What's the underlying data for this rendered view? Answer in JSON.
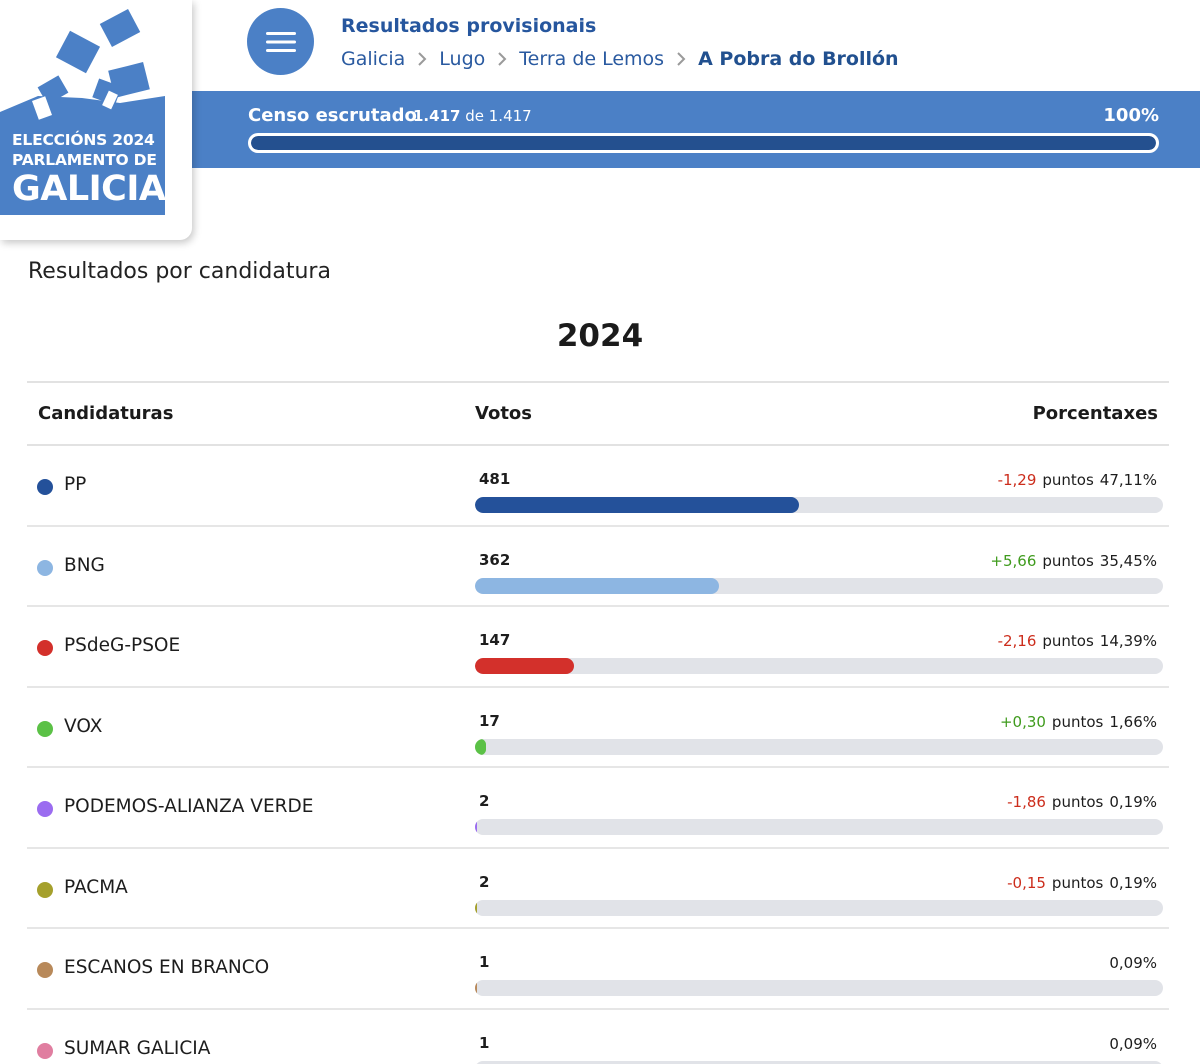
{
  "logo": {
    "line1": "ELECCIÓNS 2024",
    "line2": "PARLAMENTO DE",
    "line3": "GALICIA",
    "color": "#4b80c6"
  },
  "header": {
    "menu_icon": "hamburger-menu-icon",
    "title": "Resultados provisionais",
    "breadcrumb": [
      "Galicia",
      "Lugo",
      "Terra de Lemos",
      "A Pobra do Brollón"
    ],
    "separator_icon": "chevron-right-icon"
  },
  "census": {
    "label": "Censo escrutado",
    "counted": "1.417",
    "of_word": "de",
    "total": "1.417",
    "percent_text": "100%",
    "progress": 1.0
  },
  "results": {
    "section_title": "Resultados por candidatura",
    "year": "2024",
    "columns": {
      "candidates": "Candidaturas",
      "votes": "Votos",
      "percentages": "Porcentaxes"
    },
    "points_word": "puntos",
    "rows": [
      {
        "party": "PP",
        "color": "#24519a",
        "votes": "481",
        "diff": "-1,29",
        "diff_sign": "neg",
        "percent": "47,11%",
        "share": 0.4711
      },
      {
        "party": "BNG",
        "color": "#8db6e2",
        "votes": "362",
        "diff": "+5,66",
        "diff_sign": "pos",
        "percent": "35,45%",
        "share": 0.3545
      },
      {
        "party": "PSdeG-PSOE",
        "color": "#d3302b",
        "votes": "147",
        "diff": "-2,16",
        "diff_sign": "neg",
        "percent": "14,39%",
        "share": 0.1439
      },
      {
        "party": "VOX",
        "color": "#5bc146",
        "votes": "17",
        "diff": "+0,30",
        "diff_sign": "pos",
        "percent": "1,66%",
        "share": 0.0166
      },
      {
        "party": "PODEMOS-ALIANZA VERDE",
        "color": "#9b6cf0",
        "votes": "2",
        "diff": "-1,86",
        "diff_sign": "neg",
        "percent": "0,19%",
        "share": 0.0019
      },
      {
        "party": "PACMA",
        "color": "#a5a02c",
        "votes": "2",
        "diff": "-0,15",
        "diff_sign": "neg",
        "percent": "0,19%",
        "share": 0.0019
      },
      {
        "party": "ESCANOS EN BRANCO",
        "color": "#b8895a",
        "votes": "1",
        "diff": "",
        "diff_sign": "",
        "percent": "0,09%",
        "share": 0.0009
      },
      {
        "party": "SUMAR GALICIA",
        "color": "#e07ea0",
        "votes": "1",
        "diff": "",
        "diff_sign": "",
        "percent": "0,09%",
        "share": 0.0009
      }
    ]
  }
}
